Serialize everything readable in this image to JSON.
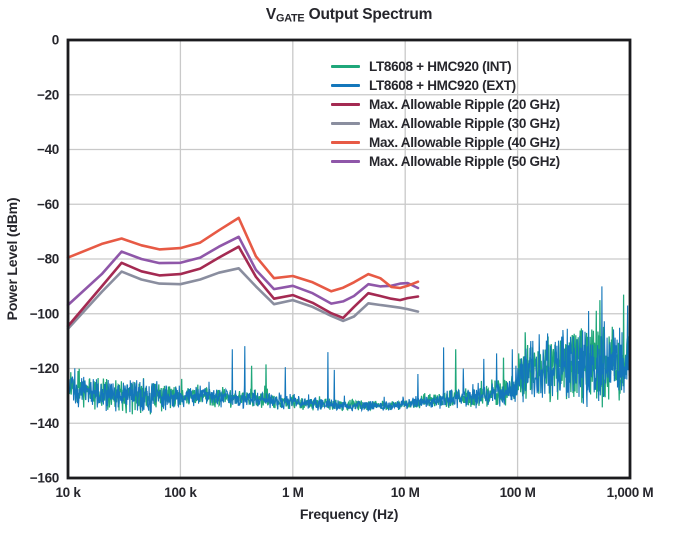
{
  "title": {
    "main": "V",
    "sub": "GATE",
    "rest": " Output Spectrum"
  },
  "legend": {
    "items": [
      {
        "label": "LT8608 + HMC920 (INT)",
        "color": "#1FA77A"
      },
      {
        "label": "LT8608 + HMC920 (EXT)",
        "color": "#1477BB"
      },
      {
        "label": "Max. Allowable Ripple (20 GHz)",
        "color": "#A42A52"
      },
      {
        "label": "Max. Allowable Ripple (30 GHz)",
        "color": "#8A8E9F"
      },
      {
        "label": "Max. Allowable Ripple (40 GHz)",
        "color": "#E75A45"
      },
      {
        "label": "Max. Allowable Ripple (50 GHz)",
        "color": "#8F57A9"
      }
    ]
  },
  "colors": {
    "frame": "#1B1B1E",
    "grid": "#C9C9C9",
    "text": "#26262C",
    "background": "#FFFFFF"
  },
  "chart_data": {
    "type": "line",
    "title": "V(GATE) Output Spectrum",
    "xlabel": "Frequency (Hz)",
    "ylabel": "Power Level (dBm)",
    "x_scale": "log",
    "xlim": [
      10000,
      1000000000
    ],
    "ylim": [
      -160,
      0
    ],
    "grid": true,
    "legend_position": "upper right inside",
    "x_ticks": [
      {
        "value": 10000,
        "label": "10 k"
      },
      {
        "value": 100000,
        "label": "100 k"
      },
      {
        "value": 1000000,
        "label": "1 M"
      },
      {
        "value": 10000000,
        "label": "10 M"
      },
      {
        "value": 100000000,
        "label": "100 M"
      },
      {
        "value": 1000000000,
        "label": "1,000 M"
      }
    ],
    "y_ticks": [
      {
        "value": 0,
        "label": "0"
      },
      {
        "value": -20,
        "label": "−20"
      },
      {
        "value": -40,
        "label": "−40"
      },
      {
        "value": -60,
        "label": "−60"
      },
      {
        "value": -80,
        "label": "−80"
      },
      {
        "value": -100,
        "label": "−100"
      },
      {
        "value": -120,
        "label": "−120"
      },
      {
        "value": -140,
        "label": "−140"
      },
      {
        "value": -160,
        "label": "−160"
      }
    ],
    "ripple": {
      "x": [
        10000,
        20000,
        30000,
        45000,
        65000,
        100000,
        150000,
        220000,
        330000,
        470000,
        680000,
        1000000,
        1500000,
        2200000,
        2800000,
        3500000,
        4700000,
        6000000,
        7500000,
        9000000,
        10500000,
        13000000
      ],
      "series": [
        {
          "name": "Max. Allowable Ripple (20 GHz)",
          "color": "#A42A52",
          "values": [
            -104.5,
            -90.0,
            -81.4,
            -84.5,
            -86.0,
            -85.5,
            -83.5,
            -79.5,
            -75.5,
            -86.5,
            -94.5,
            -93.2,
            -96.0,
            -99.8,
            -101.5,
            -97.5,
            -92.5,
            -93.5,
            -94.5,
            -95.0,
            -94.3,
            -93.7
          ]
        },
        {
          "name": "Max. Allowable Ripple (30 GHz)",
          "color": "#8A8E9F",
          "values": [
            -105.5,
            -92.0,
            -84.6,
            -87.5,
            -89.0,
            -89.2,
            -87.5,
            -85.0,
            -83.4,
            -90.0,
            -96.5,
            -95.0,
            -97.5,
            -100.8,
            -102.6,
            -101.0,
            -96.2,
            -96.8,
            -97.3,
            -97.8,
            -98.3,
            -99.2
          ]
        },
        {
          "name": "Max. Allowable Ripple (40 GHz)",
          "color": "#E75A45",
          "values": [
            -79.5,
            -74.5,
            -72.5,
            -75.0,
            -76.5,
            -76.0,
            -74.0,
            -69.5,
            -65.0,
            -79.0,
            -87.0,
            -86.2,
            -88.5,
            -91.8,
            -90.5,
            -88.5,
            -85.5,
            -87.0,
            -90.2,
            -90.6,
            -89.8,
            -88.3
          ]
        },
        {
          "name": "Max. Allowable Ripple (50 GHz)",
          "color": "#8F57A9",
          "values": [
            -96.8,
            -85.5,
            -77.3,
            -80.0,
            -81.5,
            -81.4,
            -79.5,
            -75.5,
            -71.9,
            -84.0,
            -91.0,
            -89.8,
            -92.5,
            -96.3,
            -95.5,
            -93.5,
            -89.2,
            -90.0,
            -89.8,
            -89.0,
            -88.8,
            -90.6
          ]
        }
      ]
    },
    "noise": {
      "baseline": [
        [
          10000,
          -127.5,
          10
        ],
        [
          20000,
          -129.5,
          10
        ],
        [
          50000,
          -130.5,
          12
        ],
        [
          130000,
          -129.8,
          7
        ],
        [
          300000,
          -130.8,
          6
        ],
        [
          1000000,
          -132.3,
          5
        ],
        [
          3000000,
          -133.6,
          3.6
        ],
        [
          8000000,
          -133.6,
          3.2
        ],
        [
          15000000,
          -132.0,
          4.5
        ],
        [
          40000000,
          -130.5,
          7
        ],
        [
          95000000,
          -128.0,
          10
        ],
        [
          115000000,
          -121.5,
          19
        ],
        [
          300000000,
          -119.5,
          25
        ],
        [
          600000000,
          -118.5,
          26
        ],
        [
          1000000000,
          -118.0,
          26
        ]
      ],
      "series": [
        {
          "name": "LT8608 + HMC920 (INT)",
          "color": "#1FA77A",
          "spikes": [
            [
              430000,
              -119.0
            ],
            [
              580000,
              -118.5
            ],
            [
              28000000,
              -113.0
            ],
            [
              75000000,
              -116.0
            ],
            [
              540000000,
              -95.0
            ],
            [
              880000000,
              -93.0
            ],
            [
              990000000,
              -96.5
            ]
          ]
        },
        {
          "name": "LT8608 + HMC920 (EXT)",
          "color": "#1477BB",
          "spikes": [
            [
              290000,
              -113.0
            ],
            [
              375000,
              -111.8
            ],
            [
              860000,
              -119.5
            ],
            [
              2050000,
              -114.0
            ],
            [
              2350000,
              -120.5
            ],
            [
              13000000,
              -122.0
            ],
            [
              22000000,
              -112.3
            ],
            [
              33000000,
              -120.0
            ],
            [
              50000000,
              -116.5
            ],
            [
              65000000,
              -114.5
            ],
            [
              90000000,
              -113.0
            ],
            [
              430000000,
              -99.0
            ],
            [
              560000000,
              -90.0
            ],
            [
              950000000,
              -97.0
            ]
          ]
        }
      ]
    }
  }
}
